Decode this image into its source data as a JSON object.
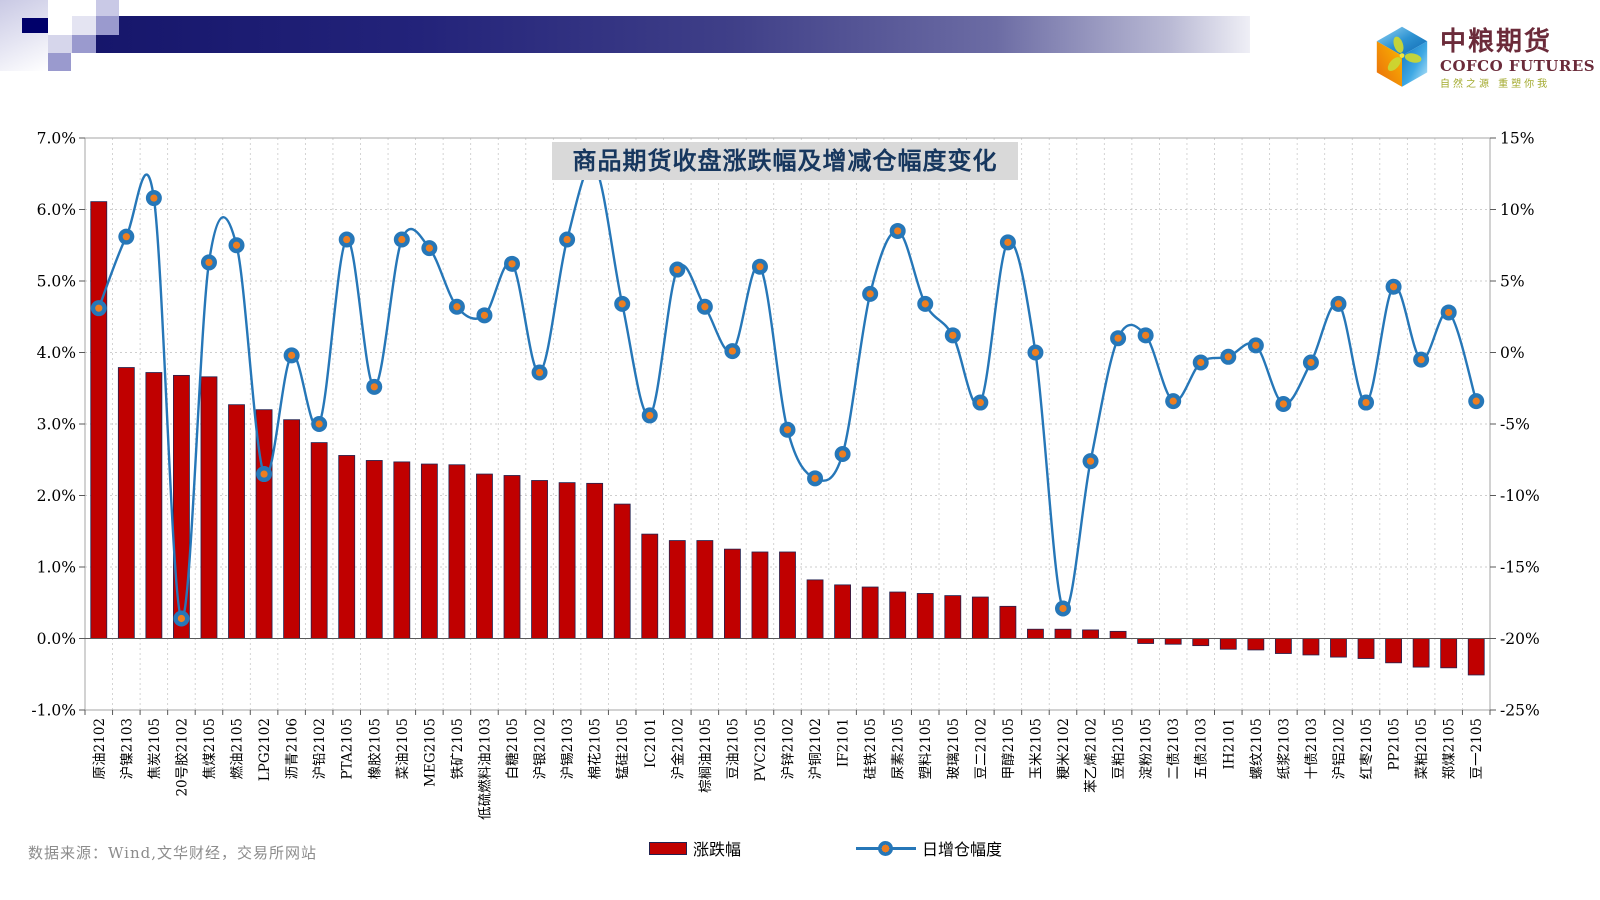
{
  "brand": {
    "name_cn": "中粮期货",
    "name_en": "COFCO FUTURES",
    "tagline": "自然之源 重塑你我"
  },
  "source_note": "数据来源：Wind,文华财经，交易所网站",
  "chart_data": {
    "type": "bar+line",
    "title": "商品期货收盘涨跌幅及增减仓幅度变化",
    "grid": true,
    "legend_position": "bottom",
    "categories": [
      "原油2102",
      "沪镍2103",
      "焦炭2105",
      "20号胶2102",
      "焦煤2105",
      "燃油2105",
      "LPG2102",
      "沥青2106",
      "沪铅2102",
      "PTA2105",
      "橡胶2105",
      "菜油2105",
      "MEG2105",
      "铁矿2105",
      "低硫燃料油2103",
      "白糖2105",
      "沪银2102",
      "沪锡2103",
      "棉花2105",
      "锰硅2105",
      "IC2101",
      "沪金2102",
      "棕榈油2105",
      "豆油2105",
      "PVC2105",
      "沪锌2102",
      "沪铜2102",
      "IF2101",
      "硅铁2105",
      "尿素2105",
      "塑料2105",
      "玻璃2105",
      "豆二2102",
      "甲醇2105",
      "玉米2105",
      "粳米2102",
      "苯乙烯2102",
      "豆粕2105",
      "淀粉2105",
      "二债2103",
      "五债2103",
      "IH2101",
      "螺纹2105",
      "纸浆2103",
      "十债2103",
      "沪铝2102",
      "红枣2105",
      "PP2105",
      "菜粕2105",
      "郑煤2105",
      "豆一2105"
    ],
    "series": [
      {
        "name": "涨跌幅",
        "type": "bar",
        "axis": "left",
        "color": "#C00000",
        "border_color": "#22224F",
        "values": [
          6.11,
          3.79,
          3.72,
          3.68,
          3.66,
          3.27,
          3.2,
          3.06,
          2.74,
          2.56,
          2.49,
          2.47,
          2.44,
          2.43,
          2.3,
          2.28,
          2.21,
          2.18,
          2.17,
          1.88,
          1.46,
          1.37,
          1.37,
          1.25,
          1.21,
          1.21,
          0.82,
          0.75,
          0.72,
          0.65,
          0.63,
          0.6,
          0.58,
          0.45,
          0.13,
          0.13,
          0.12,
          0.1,
          -0.07,
          -0.08,
          -0.1,
          -0.15,
          -0.16,
          -0.21,
          -0.23,
          -0.26,
          -0.28,
          -0.34,
          -0.4,
          -0.41,
          -0.51
        ]
      },
      {
        "name": "日增仓幅度",
        "type": "line",
        "axis": "right",
        "color": "#2677B8",
        "marker_color": "#EE7E20",
        "values": [
          3.1,
          8.1,
          10.8,
          -18.6,
          6.3,
          7.5,
          -8.5,
          -0.2,
          -5.0,
          7.9,
          -2.4,
          7.9,
          7.3,
          3.2,
          2.6,
          6.2,
          -1.4,
          7.9,
          13.0,
          3.4,
          -4.4,
          5.8,
          3.2,
          0.1,
          6.0,
          -5.4,
          -8.8,
          -7.1,
          4.1,
          8.5,
          3.4,
          1.2,
          -3.5,
          7.7,
          0.0,
          -17.9,
          -7.6,
          1.0,
          1.2,
          -3.4,
          -0.7,
          -0.3,
          0.5,
          -3.6,
          -0.7,
          3.4,
          -3.5,
          4.6,
          -0.5,
          2.8,
          -3.4
        ]
      }
    ],
    "left_axis": {
      "min": -1,
      "max": 7,
      "tick_values": [
        7,
        6,
        5,
        4,
        3,
        2,
        1,
        0,
        -1
      ],
      "tick_labels": [
        "7.0%",
        "6.0%",
        "5.0%",
        "4.0%",
        "3.0%",
        "2.0%",
        "1.0%",
        "0.0%",
        "-1.0%"
      ]
    },
    "right_axis": {
      "min": -25,
      "max": 15,
      "tick_values": [
        15,
        10,
        5,
        0,
        -5,
        -10,
        -15,
        -20,
        -25
      ],
      "tick_labels": [
        "15%",
        "10%",
        "5%",
        "0%",
        "-5%",
        "-10%",
        "-15%",
        "-20%",
        "-25%"
      ]
    }
  }
}
